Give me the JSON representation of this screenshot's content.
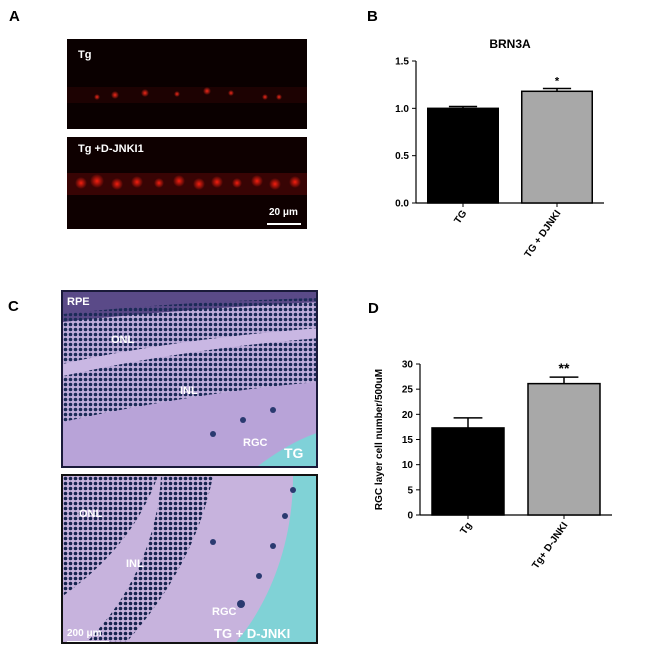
{
  "panels": {
    "a": {
      "letter": "A",
      "top_label": "Tg",
      "bottom_label": "Tg +D-JNKI1",
      "scale": "20 μm"
    },
    "b": {
      "letter": "B"
    },
    "c": {
      "letter": "C",
      "scale": "200 μm",
      "top": {
        "rpe": "RPE",
        "onl": "ONL",
        "inl": "INL",
        "rgc": "RGC",
        "condition": "TG"
      },
      "bottom": {
        "onl": "ONL",
        "inl": "INL",
        "rgc": "RGC",
        "condition": "TG + D-JNKI"
      }
    },
    "d": {
      "letter": "D"
    }
  },
  "chart_data": [
    {
      "type": "bar",
      "title": "BRN3A",
      "ylabel": "",
      "categories": [
        "TG",
        "TG + DJNKI"
      ],
      "values": [
        1.0,
        1.18
      ],
      "errors": [
        0.02,
        0.03
      ],
      "significance": [
        "",
        "*"
      ],
      "ylim": [
        0,
        1.5
      ],
      "yticks": [
        "0.0",
        "0.5",
        "1.0",
        "1.5"
      ],
      "bar_colors": [
        "#000000",
        "#a8a8a8"
      ]
    },
    {
      "type": "bar",
      "title": "",
      "ylabel": "RGC layer cell number/500uM",
      "categories": [
        "Tg",
        "Tg+ D-JNKI"
      ],
      "values": [
        17.3,
        26.1
      ],
      "errors": [
        2.0,
        1.3
      ],
      "significance": [
        "",
        "**"
      ],
      "ylim": [
        0,
        30
      ],
      "yticks": [
        "0",
        "5",
        "10",
        "15",
        "20",
        "25",
        "30"
      ],
      "bar_colors": [
        "#000000",
        "#a8a8a8"
      ]
    }
  ]
}
